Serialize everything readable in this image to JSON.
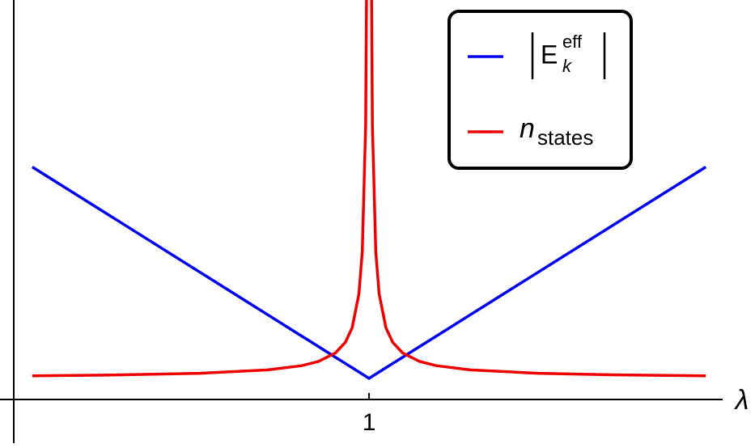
{
  "chart_data": {
    "type": "line",
    "x_label": "λ",
    "x": [
      0,
      0.25,
      0.5,
      0.7,
      0.8,
      0.85,
      0.9,
      0.93,
      0.95,
      0.97,
      0.98,
      0.99,
      0.995,
      1,
      1.005,
      1.01,
      1.02,
      1.03,
      1.05,
      1.07,
      1.1,
      1.15,
      1.2,
      1.3,
      1.5,
      1.75,
      2
    ],
    "xlim": [
      -0.055,
      2.05
    ],
    "xticks": [
      1
    ],
    "ylim": [
      0,
      1.89
    ],
    "series": [
      {
        "name": "E",
        "name_subscript": "k",
        "name_superscript": "eff",
        "color": "#0000ee",
        "values": [
          1.1,
          0.85,
          0.6,
          0.4,
          0.3,
          0.25,
          0.2,
          0.17,
          0.15,
          0.13,
          0.12,
          0.11,
          0.105,
          0.1,
          0.105,
          0.11,
          0.12,
          0.13,
          0.15,
          0.17,
          0.2,
          0.25,
          0.3,
          0.4,
          0.6,
          0.85,
          1.1
        ]
      },
      {
        "name": "n",
        "name_subscript": "states",
        "color": "#ee0000",
        "values": [
          0.112,
          0.116,
          0.124,
          0.14,
          0.16,
          0.18,
          0.22,
          0.271,
          0.34,
          0.5,
          0.7,
          1.3,
          2.5,
          null,
          2.5,
          1.3,
          0.7,
          0.5,
          0.34,
          0.271,
          0.22,
          0.18,
          0.16,
          0.14,
          0.124,
          0.116,
          0.112
        ]
      }
    ],
    "legend": "top-right"
  }
}
